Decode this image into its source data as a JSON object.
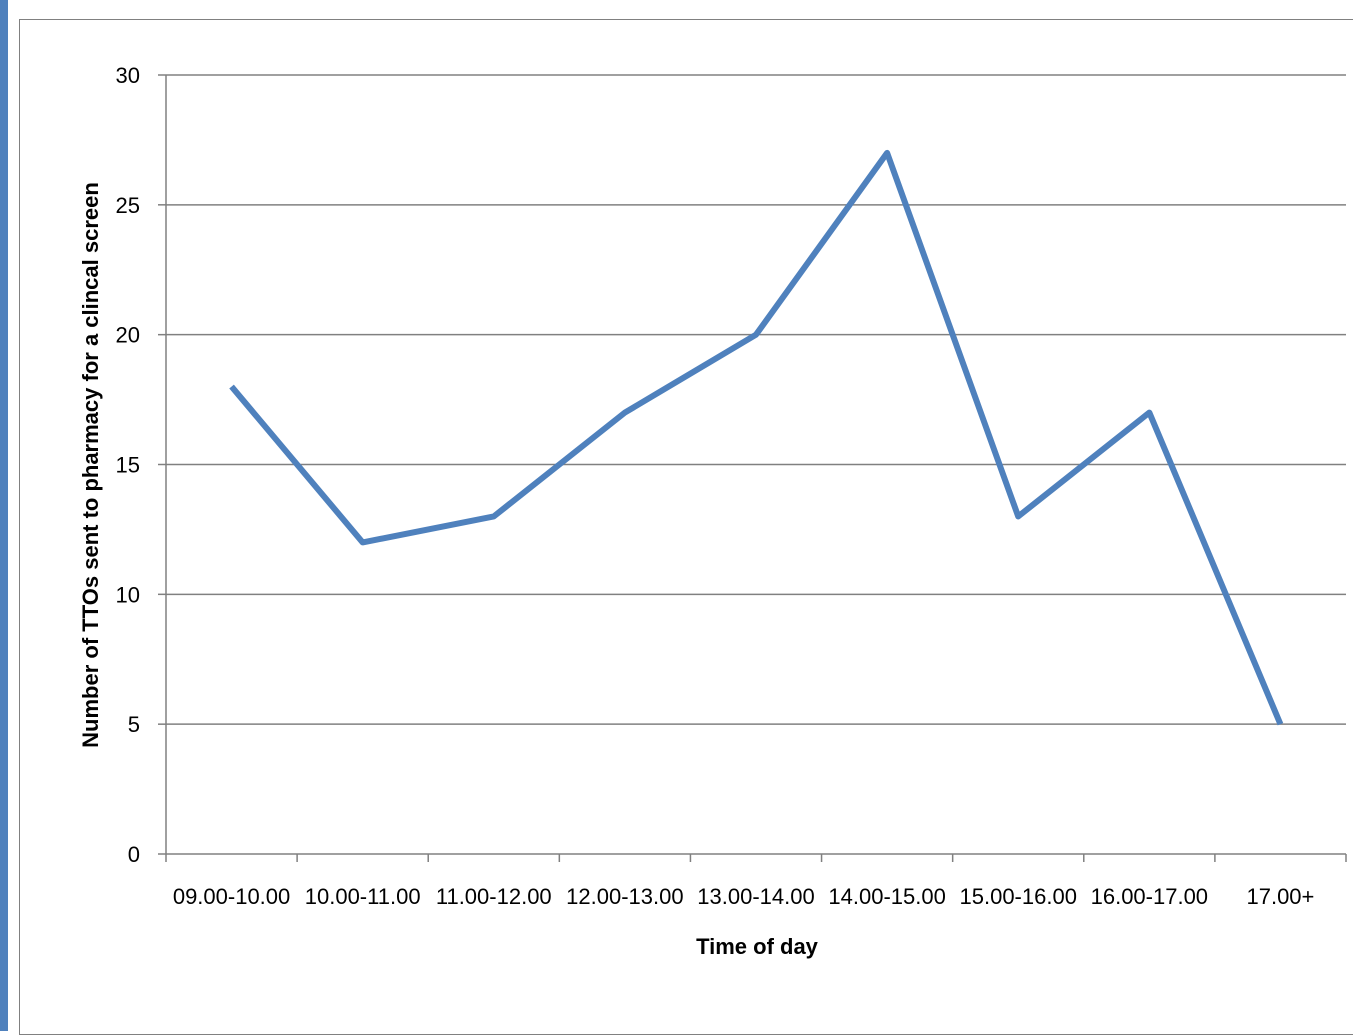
{
  "chart_data": {
    "type": "line",
    "categories": [
      "09.00-10.00",
      "10.00-11.00",
      "11.00-12.00",
      "12.00-13.00",
      "13.00-14.00",
      "14.00-15.00",
      "15.00-16.00",
      "16.00-17.00",
      "17.00+"
    ],
    "series": [
      {
        "values": [
          18,
          12,
          13,
          17,
          20,
          27,
          13,
          17,
          5
        ]
      }
    ],
    "xlabel": "Time of day",
    "ylabel": "Number of TTOs sent to pharmacy  for a clincal  screen",
    "ylim": [
      0,
      30
    ],
    "yticks": [
      0,
      5,
      10,
      15,
      20,
      25,
      30
    ],
    "grid": true,
    "legend": "none",
    "colors": {
      "line": "#4f81bd",
      "grid": "#808080",
      "accent_bar": "#4f81bd"
    }
  }
}
